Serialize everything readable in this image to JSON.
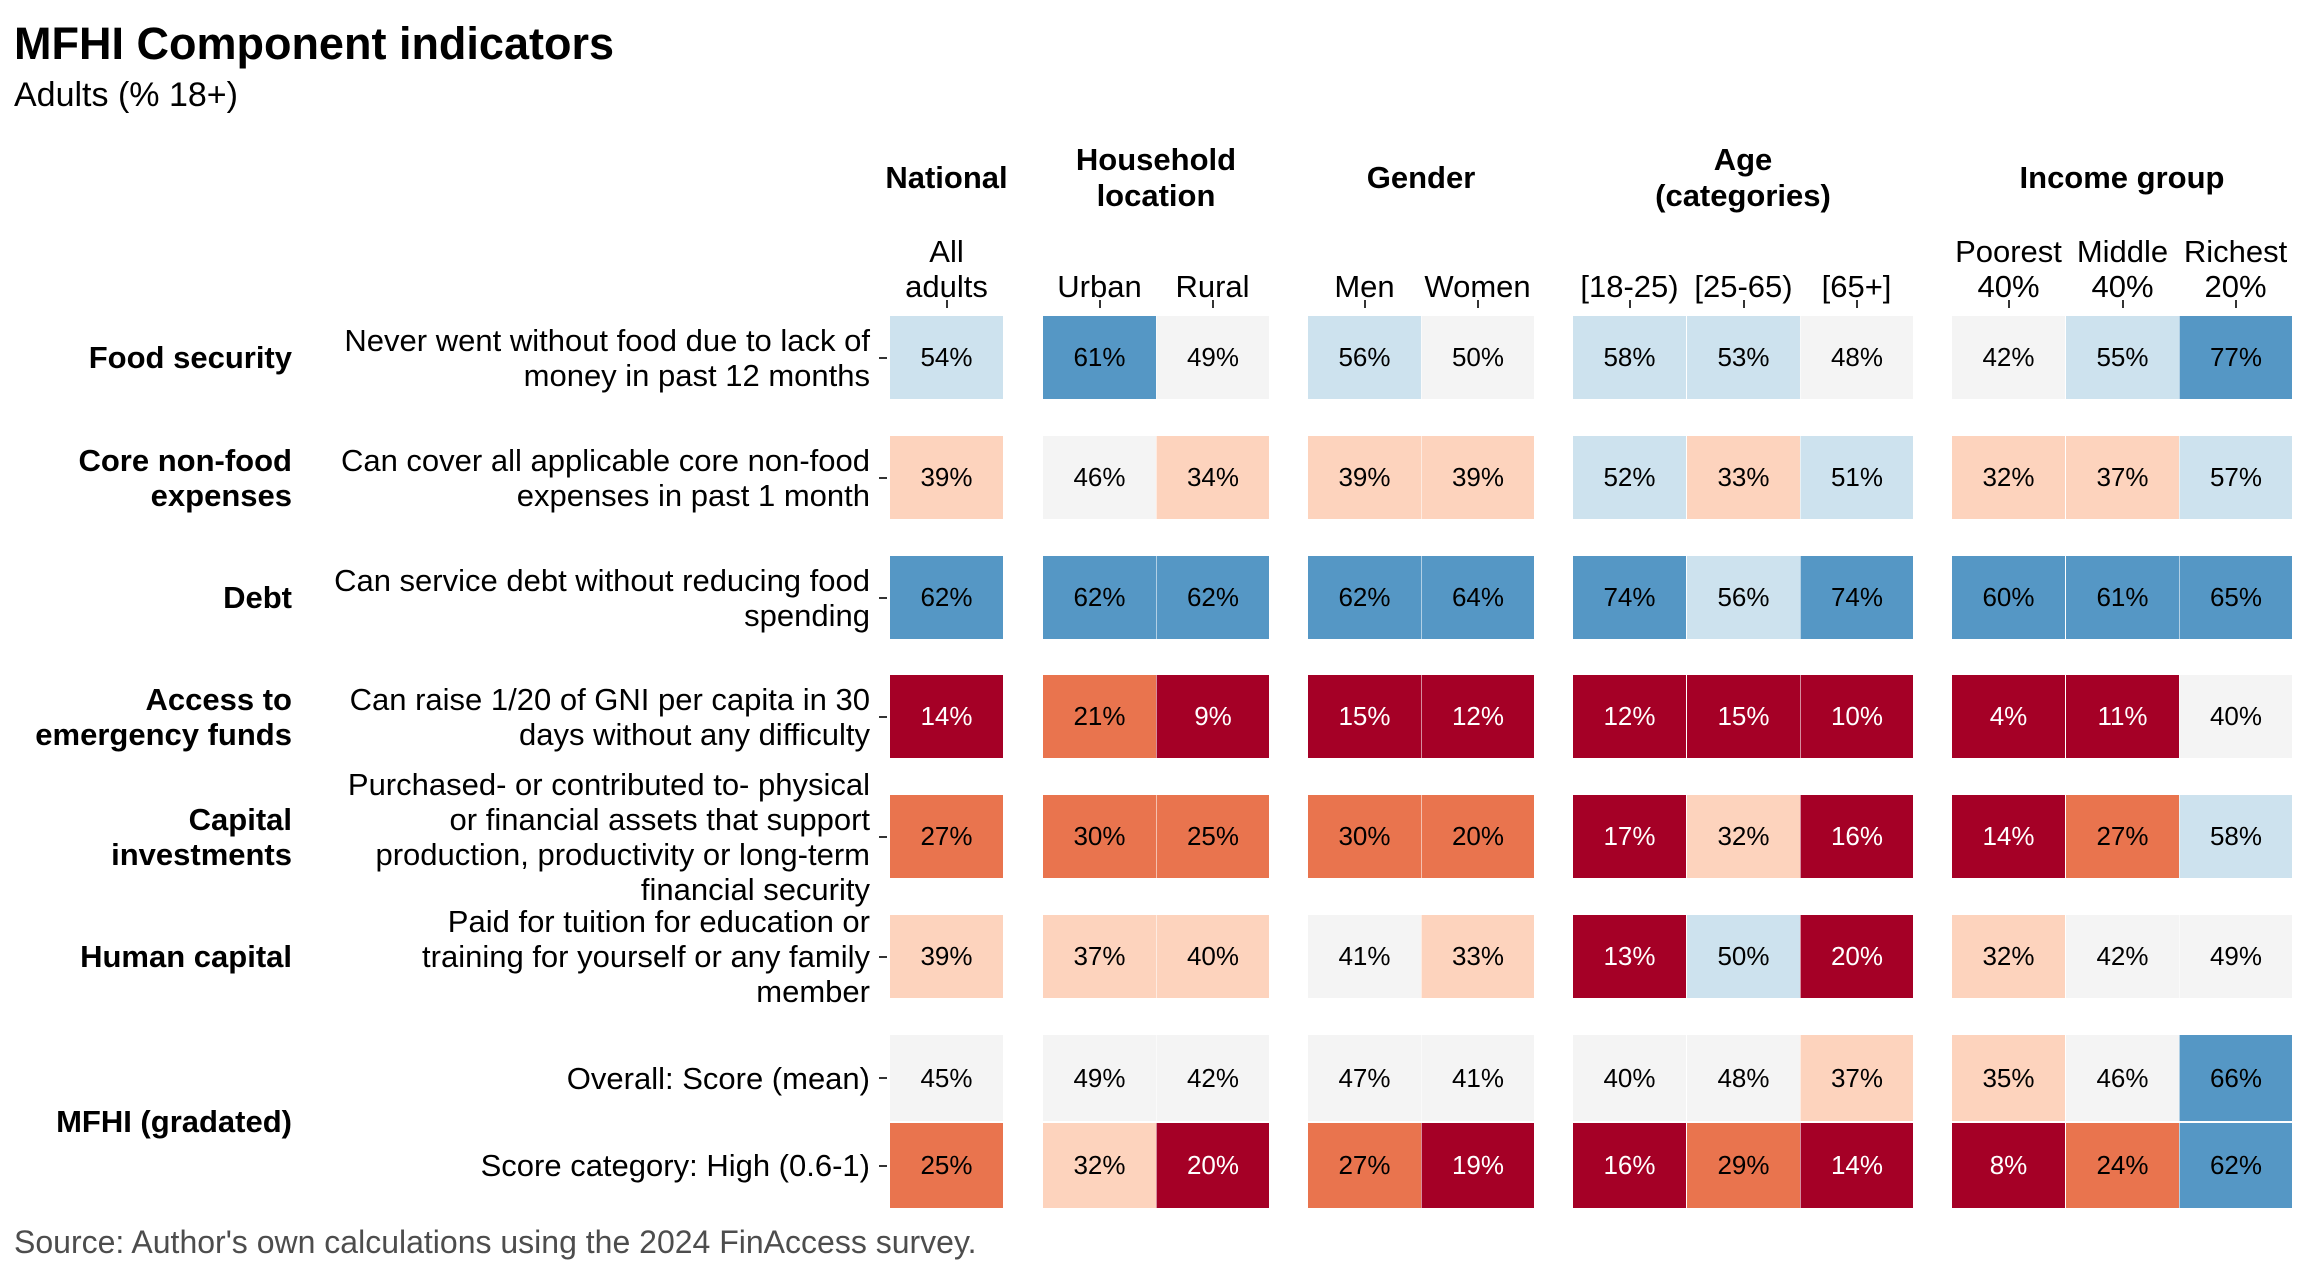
{
  "title": "MFHI Component indicators",
  "subtitle": "Adults (% 18+)",
  "source": "Source: Author's own calculations using the 2024 FinAccess survey.",
  "groups": [
    {
      "label": "National"
    },
    {
      "label": "Household\nlocation"
    },
    {
      "label": "Gender"
    },
    {
      "label": "Age\n(categories)"
    },
    {
      "label": "Income group"
    }
  ],
  "row_categories": [
    "Food security",
    "Core non-food\nexpenses",
    "Debt",
    "Access to\nemergency funds",
    "Capital\ninvestments",
    "Human capital",
    "MFHI (gradated)"
  ],
  "color_scale": {
    "very_low": "#a50026",
    "low": "#e9744e",
    "mid_low": "#fdd3bd",
    "neutral": "#f4f4f4",
    "mid_high": "#cde2ee",
    "high": "#5597c5"
  },
  "chart_data": {
    "type": "heatmap",
    "title": "MFHI Component indicators",
    "subtitle": "Adults (% 18+)",
    "columns": [
      "All\nadults",
      "Urban",
      "Rural",
      "Men",
      "Women",
      "[18-25)",
      "[25-65)",
      "[65+]",
      "Poorest\n40%",
      "Middle\n40%",
      "Richest\n20%"
    ],
    "column_groups": [
      "National",
      "Household\nlocation",
      "Household\nlocation",
      "Gender",
      "Gender",
      "Age\n(categories)",
      "Age\n(categories)",
      "Age\n(categories)",
      "Income group",
      "Income group",
      "Income group"
    ],
    "rows": [
      "Never went without food due to lack of\nmoney in past 12 months",
      "Can cover all applicable core non-food\nexpenses in past 1 month",
      "Can service debt without reducing food\nspending",
      "Can raise 1/20 of GNI per capita in 30\ndays without any difficulty",
      "Purchased- or contributed to- physical\nor financial assets that support\nproduction, productivity or long-term\nfinancial security",
      "Paid for tuition for education or\ntraining for yourself or any family\nmember",
      "Overall: Score (mean)",
      "Score category: High (0.6-1)"
    ],
    "row_categories": [
      "Food security",
      "Core non-food\nexpenses",
      "Debt",
      "Access to\nemergency funds",
      "Capital\ninvestments",
      "Human capital",
      "MFHI (gradated)",
      "MFHI (gradated)"
    ],
    "values": [
      [
        54,
        61,
        49,
        56,
        50,
        58,
        53,
        48,
        42,
        55,
        77
      ],
      [
        39,
        46,
        34,
        39,
        39,
        52,
        33,
        51,
        32,
        37,
        57
      ],
      [
        62,
        62,
        62,
        62,
        64,
        74,
        56,
        74,
        60,
        61,
        65
      ],
      [
        14,
        21,
        9,
        15,
        12,
        12,
        15,
        10,
        4,
        11,
        40
      ],
      [
        27,
        30,
        25,
        30,
        20,
        17,
        32,
        16,
        14,
        27,
        58
      ],
      [
        39,
        37,
        40,
        41,
        33,
        13,
        50,
        20,
        32,
        42,
        49
      ],
      [
        45,
        49,
        42,
        47,
        41,
        40,
        48,
        37,
        35,
        46,
        66
      ],
      [
        25,
        32,
        20,
        27,
        19,
        16,
        29,
        14,
        8,
        24,
        62
      ]
    ],
    "labels": [
      [
        "54%",
        "61%",
        "49%",
        "56%",
        "50%",
        "58%",
        "53%",
        "48%",
        "42%",
        "55%",
        "77%"
      ],
      [
        "39%",
        "46%",
        "34%",
        "39%",
        "39%",
        "52%",
        "33%",
        "51%",
        "32%",
        "37%",
        "57%"
      ],
      [
        "62%",
        "62%",
        "62%",
        "62%",
        "64%",
        "74%",
        "56%",
        "74%",
        "60%",
        "61%",
        "65%"
      ],
      [
        "14%",
        "21%",
        "9%",
        "15%",
        "12%",
        "12%",
        "15%",
        "10%",
        "4%",
        "11%",
        "40%"
      ],
      [
        "27%",
        "30%",
        "25%",
        "30%",
        "20%",
        "17%",
        "32%",
        "16%",
        "14%",
        "27%",
        "58%"
      ],
      [
        "39%",
        "37%",
        "40%",
        "41%",
        "33%",
        "13%",
        "50%",
        "20%",
        "32%",
        "42%",
        "49%"
      ],
      [
        "45%",
        "49%",
        "42%",
        "47%",
        "41%",
        "40%",
        "48%",
        "37%",
        "35%",
        "46%",
        "66%"
      ],
      [
        "25%",
        "32%",
        "20%",
        "27%",
        "19%",
        "16%",
        "29%",
        "14%",
        "8%",
        "24%",
        "62%"
      ]
    ],
    "colors": [
      [
        "mid_high",
        "high",
        "neutral",
        "mid_high",
        "neutral",
        "mid_high",
        "mid_high",
        "neutral",
        "neutral",
        "mid_high",
        "high"
      ],
      [
        "mid_low",
        "neutral",
        "mid_low",
        "mid_low",
        "mid_low",
        "mid_high",
        "mid_low",
        "mid_high",
        "mid_low",
        "mid_low",
        "mid_high"
      ],
      [
        "high",
        "high",
        "high",
        "high",
        "high",
        "high",
        "mid_high",
        "high",
        "high",
        "high",
        "high"
      ],
      [
        "very_low",
        "low",
        "very_low",
        "very_low",
        "very_low",
        "very_low",
        "very_low",
        "very_low",
        "very_low",
        "very_low",
        "neutral"
      ],
      [
        "low",
        "low",
        "low",
        "low",
        "low",
        "very_low",
        "mid_low",
        "very_low",
        "very_low",
        "low",
        "mid_high"
      ],
      [
        "mid_low",
        "mid_low",
        "mid_low",
        "neutral",
        "mid_low",
        "very_low",
        "mid_high",
        "very_low",
        "mid_low",
        "neutral",
        "neutral"
      ],
      [
        "neutral",
        "neutral",
        "neutral",
        "neutral",
        "neutral",
        "neutral",
        "neutral",
        "mid_low",
        "mid_low",
        "neutral",
        "high"
      ],
      [
        "low",
        "mid_low",
        "very_low",
        "low",
        "very_low",
        "very_low",
        "low",
        "very_low",
        "very_low",
        "low",
        "high"
      ]
    ],
    "legend": "none"
  }
}
